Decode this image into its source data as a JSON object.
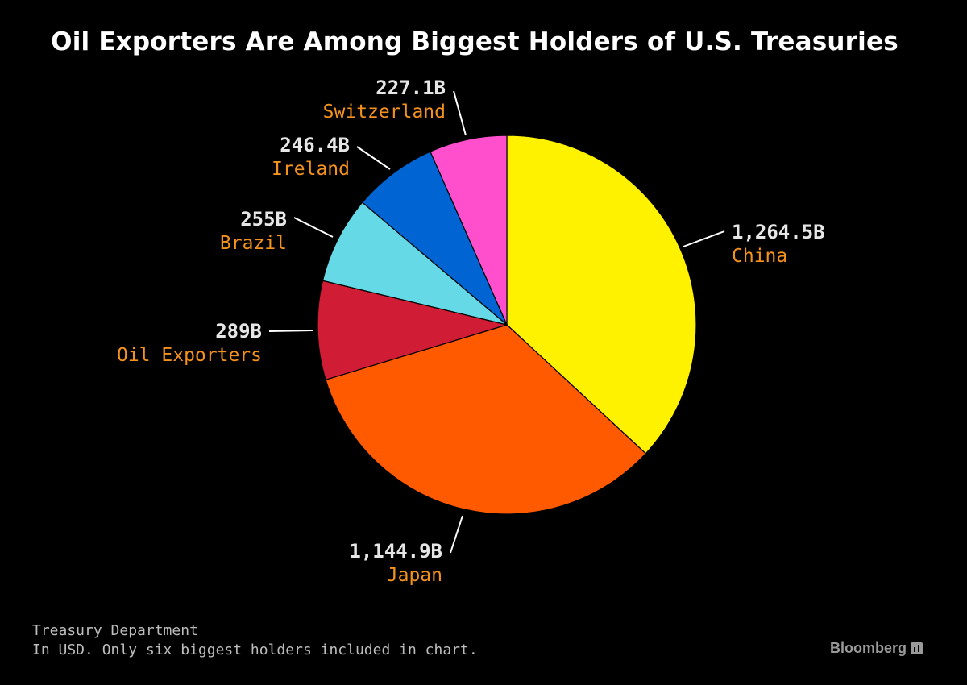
{
  "chart_data": {
    "type": "pie",
    "title": "Oil Exporters Are Among Biggest Holders of U.S. Treasuries",
    "slices": [
      {
        "name": "China",
        "value": 1264.5,
        "value_label": "1,264.5B",
        "color": "#fff200"
      },
      {
        "name": "Japan",
        "value": 1144.9,
        "value_label": "1,144.9B",
        "color": "#ff5a00"
      },
      {
        "name": "Oil Exporters",
        "value": 289,
        "value_label": "289B",
        "color": "#d01c34"
      },
      {
        "name": "Brazil",
        "value": 255,
        "value_label": "255B",
        "color": "#66d9e6"
      },
      {
        "name": "Ireland",
        "value": 246.4,
        "value_label": "246.4B",
        "color": "#0064d2"
      },
      {
        "name": "Switzerland",
        "value": 227.1,
        "value_label": "227.1B",
        "color": "#ff4fcd"
      }
    ],
    "legend": "none",
    "label_color": "#f5921e",
    "value_color": "#e6e6e6"
  },
  "footer": {
    "source": "Treasury Department",
    "note": "In USD. Only six biggest holders included in chart."
  },
  "brand": {
    "name": "Bloomberg",
    "icon": "bloomberg-chart-icon"
  }
}
